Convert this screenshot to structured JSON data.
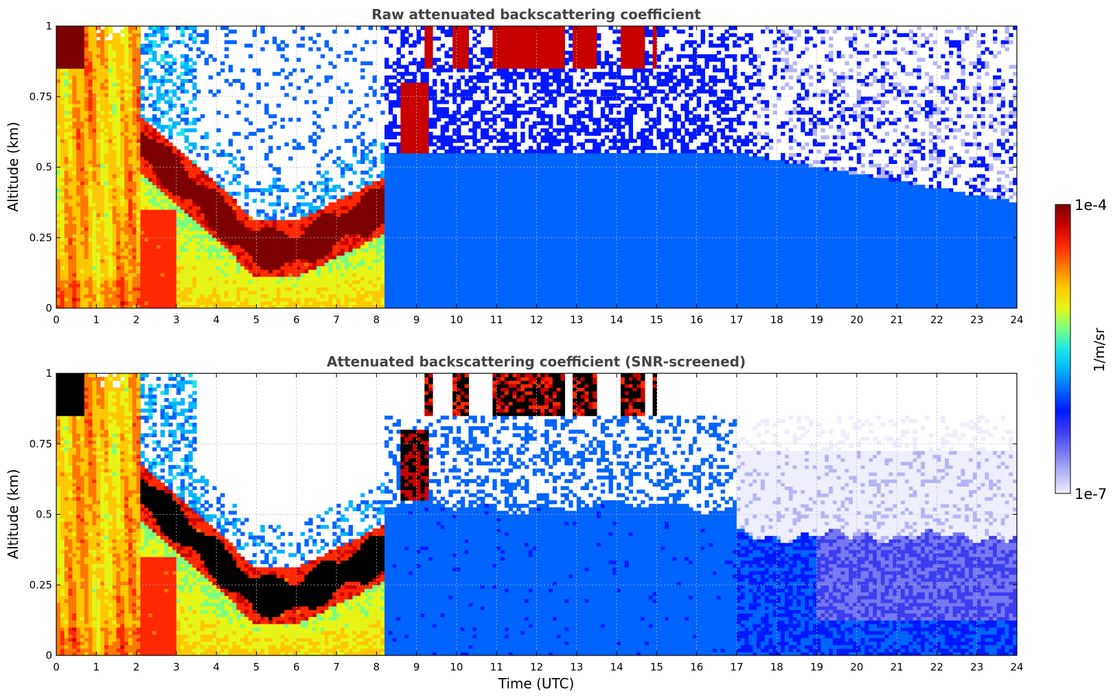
{
  "chart_data": [
    {
      "type": "heatmap",
      "title": "Raw attenuated backscattering coefficient",
      "xlabel": "",
      "ylabel": "Altitude (km)",
      "xlim": [
        0,
        24
      ],
      "ylim": [
        0,
        1
      ],
      "x_ticks": [
        "0",
        "1",
        "2",
        "3",
        "4",
        "5",
        "6",
        "7",
        "8",
        "9",
        "10",
        "11",
        "12",
        "13",
        "14",
        "15",
        "16",
        "17",
        "18",
        "19",
        "20",
        "21",
        "22",
        "23",
        "24"
      ],
      "y_ticks": [
        "0",
        "0.25",
        "0.5",
        "0.75",
        "1"
      ],
      "grid": true,
      "z_scale": "log",
      "z_range": [
        "1e-7",
        "1e-4"
      ],
      "features": [
        {
          "x_range": [
            0,
            2
          ],
          "y_range": [
            0,
            1
          ],
          "value": "~1e-5",
          "description_level": "high"
        },
        {
          "x_range": [
            2,
            8.2
          ],
          "y_center_start": 0.6,
          "y_center_min": 0.2,
          "y_center_end": 0.35,
          "value": "1e-4"
        },
        {
          "x_range": [
            8.6,
            9.3
          ],
          "y_range": [
            0.55,
            0.8
          ],
          "value": "1e-4"
        },
        {
          "x_range": [
            9.2,
            15
          ],
          "y_range": [
            0.85,
            1
          ],
          "value": "1e-4"
        },
        {
          "x_range": [
            8.2,
            24
          ],
          "y_range": [
            0,
            0.5
          ],
          "value": "~1e-6"
        }
      ]
    },
    {
      "type": "heatmap",
      "title": "Attenuated backscattering coefficient (SNR-screened)",
      "xlabel": "Time (UTC)",
      "ylabel": "Altitude (km)",
      "xlim": [
        0,
        24
      ],
      "ylim": [
        0,
        1
      ],
      "x_ticks": [
        "0",
        "1",
        "2",
        "3",
        "4",
        "5",
        "6",
        "7",
        "8",
        "9",
        "10",
        "11",
        "12",
        "13",
        "14",
        "15",
        "16",
        "17",
        "18",
        "19",
        "20",
        "21",
        "22",
        "23",
        "24"
      ],
      "y_ticks": [
        "0",
        "0.25",
        "0.5",
        "0.75",
        "1"
      ],
      "grid": true,
      "z_scale": "log",
      "z_range": [
        "1e-7",
        "1e-4"
      ],
      "features": [
        {
          "x_range": [
            2,
            8.2
          ],
          "y_center_start": 0.6,
          "y_center_min": 0.2,
          "y_center_end": 0.35,
          "value": "saturated (>1e-4)"
        },
        {
          "x_range": [
            8.2,
            17
          ],
          "y_range": [
            0,
            0.55
          ],
          "value": "~1e-6"
        },
        {
          "x_range": [
            17,
            24
          ],
          "y_range": [
            0.45,
            0.75
          ],
          "value": "~1e-7"
        }
      ]
    }
  ],
  "colorbar": {
    "label": "1/m/sr",
    "top_label": "1e-4",
    "bottom_label": "1e-7",
    "colormap": [
      "#eeeefc",
      "#b5b5f6",
      "#7878f2",
      "#3d3df0",
      "#0018ff",
      "#0064ff",
      "#00b4ff",
      "#1ee6e6",
      "#7dff7d",
      "#e6f516",
      "#ffc800",
      "#ff7800",
      "#ff2800",
      "#c80000",
      "#7d0000"
    ]
  },
  "colors": {
    "background": "#ffffff",
    "grid": "#bbbbbb",
    "saturated": "#000000"
  }
}
